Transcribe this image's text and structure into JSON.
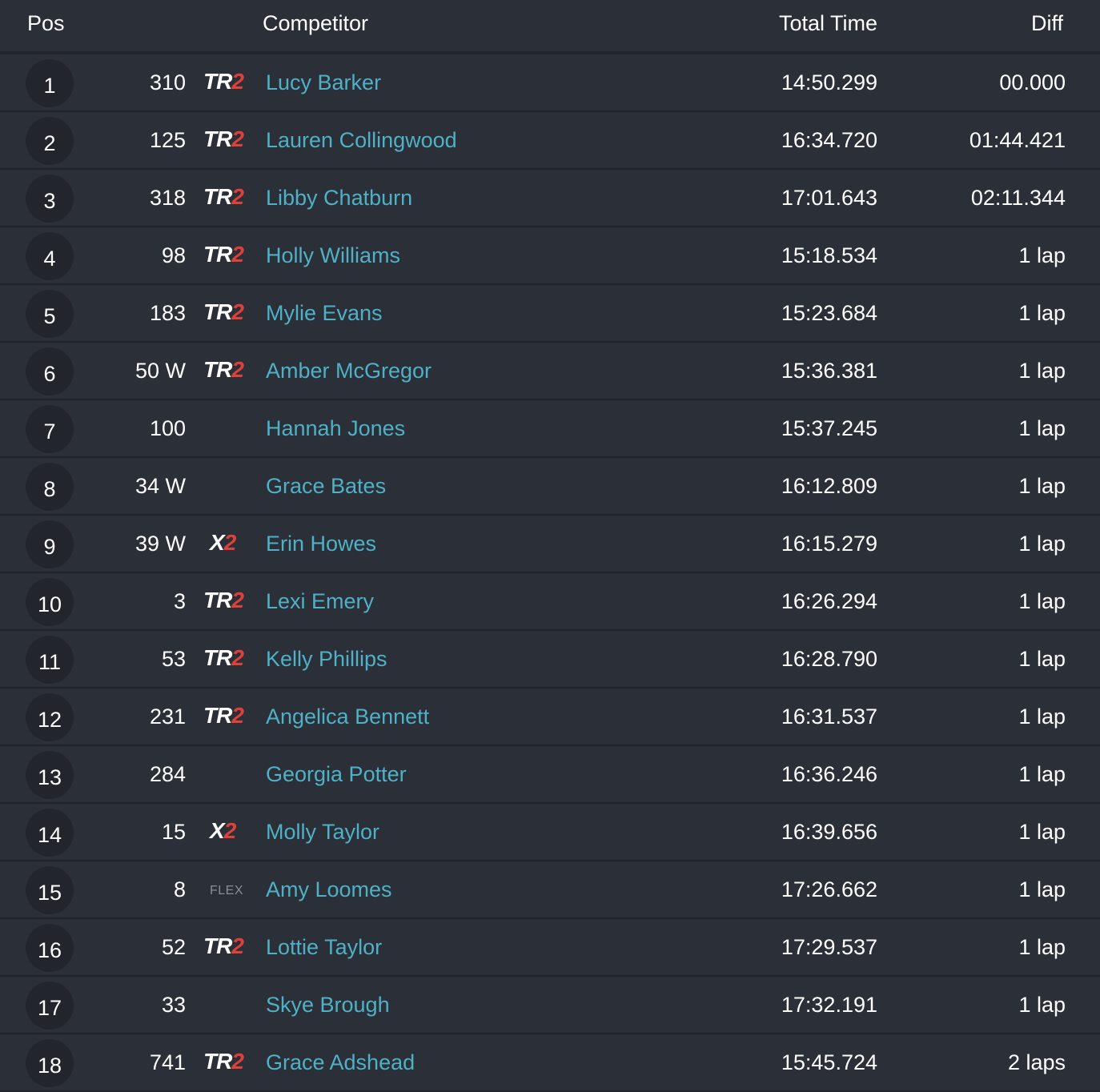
{
  "header": {
    "pos": "Pos",
    "competitor": "Competitor",
    "total_time": "Total Time",
    "diff": "Diff"
  },
  "colors": {
    "background": "#2b2f38",
    "name": "#4fb0c6",
    "logo_accent": "#e0403a"
  },
  "rows": [
    {
      "pos": "1",
      "number": "310",
      "logo": "TR2",
      "name": "Lucy Barker",
      "time": "14:50.299",
      "diff": "00.000"
    },
    {
      "pos": "2",
      "number": "125",
      "logo": "TR2",
      "name": "Lauren Collingwood",
      "time": "16:34.720",
      "diff": "01:44.421"
    },
    {
      "pos": "3",
      "number": "318",
      "logo": "TR2",
      "name": "Libby Chatburn",
      "time": "17:01.643",
      "diff": "02:11.344"
    },
    {
      "pos": "4",
      "number": "98",
      "logo": "TR2",
      "name": "Holly Williams",
      "time": "15:18.534",
      "diff": "1 lap"
    },
    {
      "pos": "5",
      "number": "183",
      "logo": "TR2",
      "name": "Mylie Evans",
      "time": "15:23.684",
      "diff": "1 lap"
    },
    {
      "pos": "6",
      "number": "50 W",
      "logo": "TR2",
      "name": "Amber McGregor",
      "time": "15:36.381",
      "diff": "1 lap"
    },
    {
      "pos": "7",
      "number": "100",
      "logo": "",
      "name": "Hannah Jones",
      "time": "15:37.245",
      "diff": "1 lap"
    },
    {
      "pos": "8",
      "number": "34 W",
      "logo": "",
      "name": "Grace Bates",
      "time": "16:12.809",
      "diff": "1 lap"
    },
    {
      "pos": "9",
      "number": "39 W",
      "logo": "X2",
      "name": "Erin Howes",
      "time": "16:15.279",
      "diff": "1 lap"
    },
    {
      "pos": "10",
      "number": "3",
      "logo": "TR2",
      "name": "Lexi Emery",
      "time": "16:26.294",
      "diff": "1 lap"
    },
    {
      "pos": "11",
      "number": "53",
      "logo": "TR2",
      "name": "Kelly Phillips",
      "time": "16:28.790",
      "diff": "1 lap"
    },
    {
      "pos": "12",
      "number": "231",
      "logo": "TR2",
      "name": "Angelica Bennett",
      "time": "16:31.537",
      "diff": "1 lap"
    },
    {
      "pos": "13",
      "number": "284",
      "logo": "",
      "name": "Georgia Potter",
      "time": "16:36.246",
      "diff": "1 lap"
    },
    {
      "pos": "14",
      "number": "15",
      "logo": "X2",
      "name": "Molly Taylor",
      "time": "16:39.656",
      "diff": "1 lap"
    },
    {
      "pos": "15",
      "number": "8",
      "logo": "FLEX",
      "name": "Amy Loomes",
      "time": "17:26.662",
      "diff": "1 lap"
    },
    {
      "pos": "16",
      "number": "52",
      "logo": "TR2",
      "name": "Lottie Taylor",
      "time": "17:29.537",
      "diff": "1 lap"
    },
    {
      "pos": "17",
      "number": "33",
      "logo": "",
      "name": "Skye Brough",
      "time": "17:32.191",
      "diff": "1 lap"
    },
    {
      "pos": "18",
      "number": "741",
      "logo": "TR2",
      "name": "Grace Adshead",
      "time": "15:45.724",
      "diff": "2 laps"
    }
  ]
}
